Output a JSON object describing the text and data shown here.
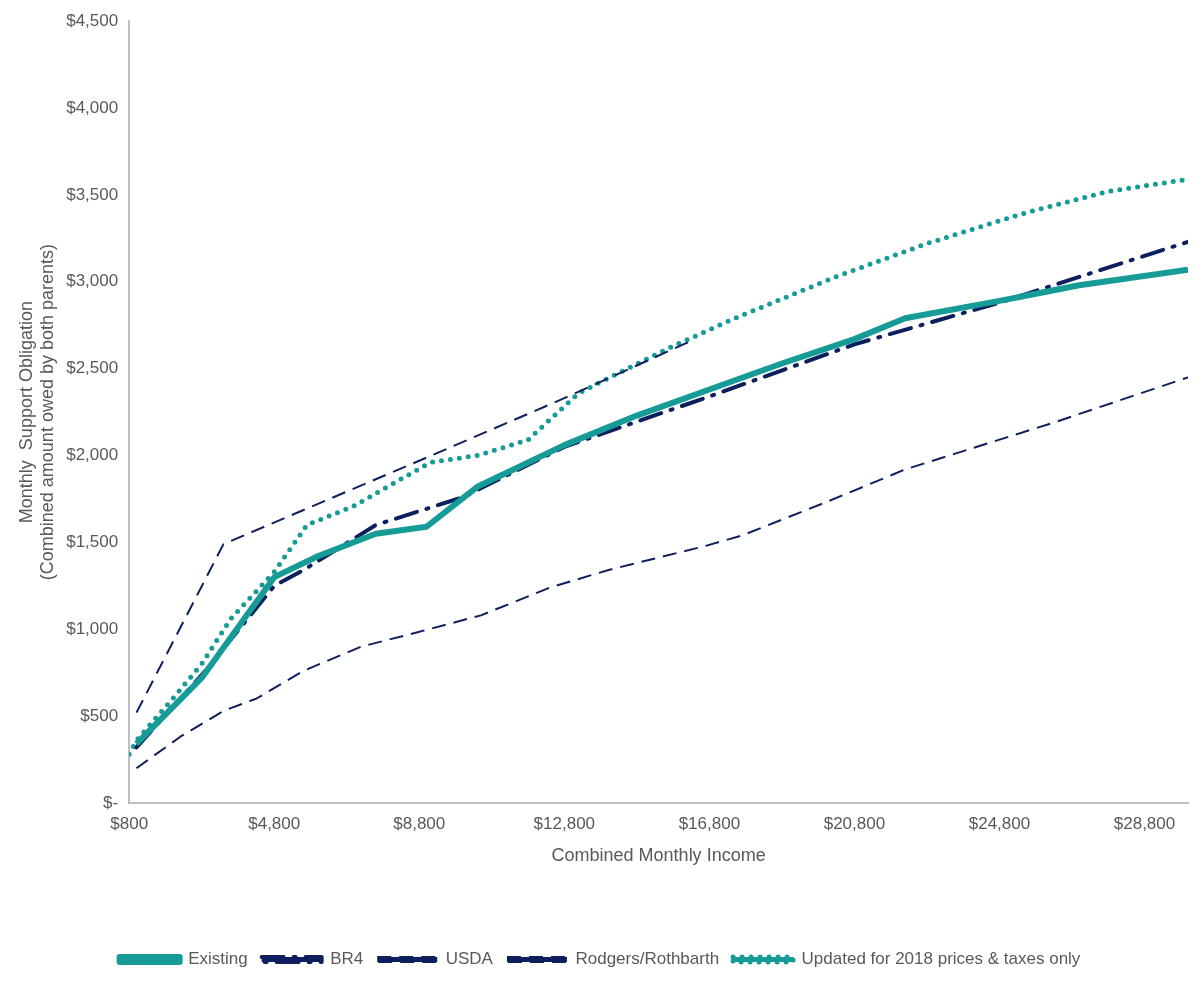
{
  "chart_data": {
    "type": "line",
    "xlabel": "Combined Monthly Income",
    "ylabel": "Monthly  Support Obligation\n(Combined amount owed by both parents)",
    "xlim": [
      800,
      30000
    ],
    "xticks": [
      {
        "value": 800,
        "label": "$800"
      },
      {
        "value": 4800,
        "label": "$4,800"
      },
      {
        "value": 8800,
        "label": "$8,800"
      },
      {
        "value": 12800,
        "label": "$12,800"
      },
      {
        "value": 16800,
        "label": "$16,800"
      },
      {
        "value": 20800,
        "label": "$20,800"
      },
      {
        "value": 24800,
        "label": "$24,800"
      },
      {
        "value": 28800,
        "label": "$28,800"
      }
    ],
    "ylim": [
      0,
      4500
    ],
    "yticks": [
      {
        "value": 0,
        "label": "$-"
      },
      {
        "value": 500,
        "label": "$500"
      },
      {
        "value": 1000,
        "label": "$1,000"
      },
      {
        "value": 1500,
        "label": "$1,500"
      },
      {
        "value": 2000,
        "label": "$2,000"
      },
      {
        "value": 2500,
        "label": "$2,500"
      },
      {
        "value": 3000,
        "label": "$3,000"
      },
      {
        "value": 3500,
        "label": "$3,500"
      },
      {
        "value": 4000,
        "label": "$4,000"
      },
      {
        "value": 4500,
        "label": "$4,500"
      }
    ],
    "grid": false,
    "legend": "bottom",
    "marker": "none",
    "series": [
      {
        "name": "Existing",
        "color": "#169b97",
        "line_style": "solid",
        "x": [
          1000,
          2800,
          4800,
          6000,
          7600,
          9000,
          10400,
          12800,
          14800,
          16800,
          18800,
          20800,
          22200,
          24800,
          27000,
          30000
        ],
        "values": [
          340,
          720,
          1300,
          1420,
          1550,
          1590,
          1820,
          2060,
          2230,
          2380,
          2530,
          2670,
          2790,
          2890,
          2980,
          3070
        ]
      },
      {
        "name": "BR4",
        "color": "#0d1f5c",
        "line_style": "dashdot",
        "x": [
          1000,
          2900,
          4800,
          5600,
          7600,
          8800,
          10000,
          12800,
          16800,
          20800,
          24800,
          30000
        ],
        "values": [
          320,
          760,
          1250,
          1340,
          1600,
          1680,
          1760,
          2050,
          2340,
          2640,
          2880,
          3230
        ]
      },
      {
        "name": "USDA",
        "color": "#0d1f5c",
        "line_style": "dashed",
        "x": [
          1000,
          3400,
          8800,
          12800,
          16300
        ],
        "values": [
          520,
          1490,
          1970,
          2330,
          2660
        ]
      },
      {
        "name": "Rodgers/Rothbarth",
        "color": "#0d1f5c",
        "line_style": "dashed",
        "x": [
          1000,
          2200,
          3400,
          4300,
          5600,
          7200,
          8700,
          10500,
          12400,
          14000,
          16700,
          17700,
          20000,
          22200,
          26300,
          30000
        ],
        "values": [
          200,
          380,
          530,
          600,
          760,
          900,
          980,
          1080,
          1240,
          1340,
          1480,
          1540,
          1730,
          1920,
          2190,
          2450
        ]
      },
      {
        "name": "Updated for 2018 prices & taxes only",
        "color": "#169b97",
        "line_style": "dotted",
        "x": [
          800,
          1000,
          2000,
          2800,
          3600,
          4800,
          5700,
          7000,
          9100,
          10400,
          11800,
          13200,
          15700,
          17500,
          20300,
          22800,
          25400,
          27800,
          30000
        ],
        "values": [
          280,
          360,
          600,
          800,
          1060,
          1330,
          1600,
          1710,
          1960,
          2000,
          2090,
          2360,
          2620,
          2790,
          3030,
          3220,
          3390,
          3520,
          3590
        ]
      }
    ]
  }
}
